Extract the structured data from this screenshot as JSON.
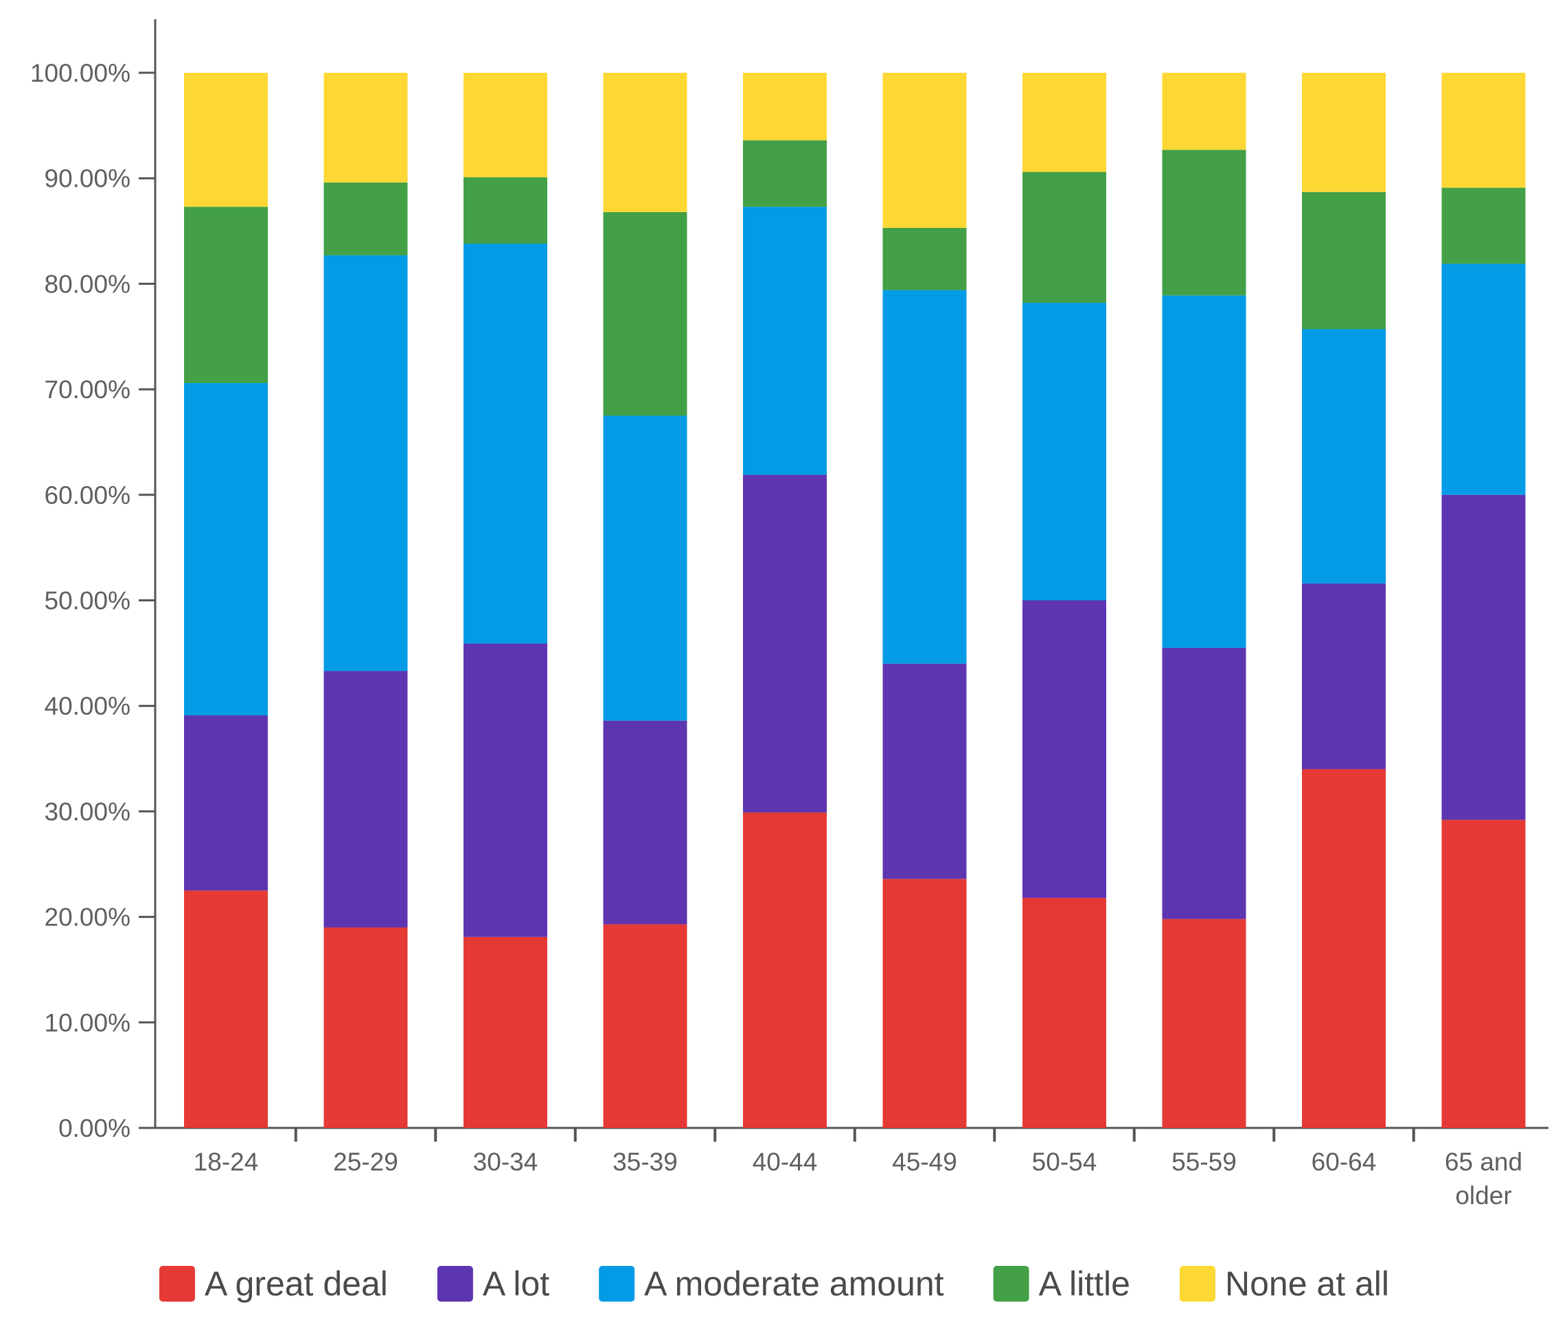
{
  "chart_data": {
    "type": "bar",
    "stacked": true,
    "title": "",
    "xlabel": "",
    "ylabel": "",
    "ylim": [
      0,
      100
    ],
    "y_ticks": [
      {
        "value": 0,
        "label": "0.00%"
      },
      {
        "value": 10,
        "label": "10.00%"
      },
      {
        "value": 20,
        "label": "20.00%"
      },
      {
        "value": 30,
        "label": "30.00%"
      },
      {
        "value": 40,
        "label": "40.00%"
      },
      {
        "value": 50,
        "label": "50.00%"
      },
      {
        "value": 60,
        "label": "60.00%"
      },
      {
        "value": 70,
        "label": "70.00%"
      },
      {
        "value": 80,
        "label": "80.00%"
      },
      {
        "value": 90,
        "label": "90.00%"
      },
      {
        "value": 100,
        "label": "100.00%"
      }
    ],
    "categories": [
      [
        "18-24"
      ],
      [
        "25-29"
      ],
      [
        "30-34"
      ],
      [
        "35-39"
      ],
      [
        "40-44"
      ],
      [
        "45-49"
      ],
      [
        "50-54"
      ],
      [
        "55-59"
      ],
      [
        "60-64"
      ],
      [
        "65 and",
        "older"
      ]
    ],
    "legend_position": "bottom",
    "series": [
      {
        "name": "A great deal",
        "color": "#e53935",
        "values": [
          22.5,
          19.0,
          18.1,
          19.3,
          29.9,
          23.6,
          21.8,
          19.8,
          34.0,
          29.2
        ]
      },
      {
        "name": "A lot",
        "color": "#5e35b1",
        "values": [
          16.6,
          24.3,
          27.8,
          19.3,
          32.0,
          20.4,
          28.2,
          25.7,
          17.6,
          30.8
        ]
      },
      {
        "name": "A moderate amount",
        "color": "#039be5",
        "values": [
          31.5,
          39.4,
          37.9,
          28.9,
          25.4,
          35.4,
          28.2,
          33.4,
          24.1,
          21.9
        ]
      },
      {
        "name": "A little",
        "color": "#43a047",
        "values": [
          16.7,
          6.9,
          6.3,
          19.3,
          6.3,
          5.9,
          12.4,
          13.8,
          13.0,
          7.2
        ]
      },
      {
        "name": "None at all",
        "color": "#fdd835",
        "values": [
          12.7,
          10.4,
          9.9,
          13.2,
          6.4,
          14.7,
          9.4,
          7.3,
          11.3,
          10.9
        ]
      }
    ]
  }
}
